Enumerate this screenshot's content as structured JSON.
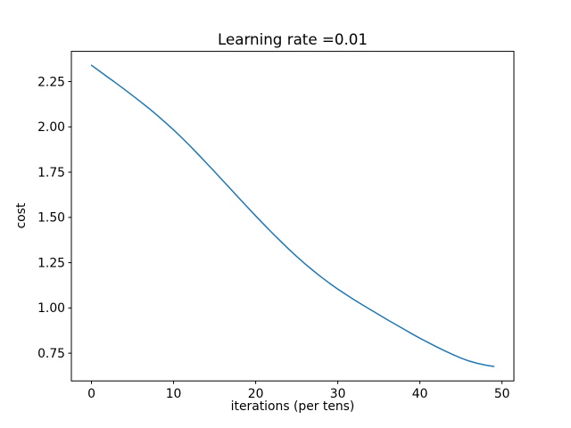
{
  "chart_data": {
    "type": "line",
    "title": "Learning rate =0.01",
    "xlabel": "iterations (per tens)",
    "ylabel": "cost",
    "x": [
      0,
      1,
      2,
      3,
      4,
      5,
      6,
      7,
      8,
      9,
      10,
      11,
      12,
      13,
      14,
      15,
      16,
      17,
      18,
      19,
      20,
      21,
      22,
      23,
      24,
      25,
      26,
      27,
      28,
      29,
      30,
      31,
      32,
      33,
      34,
      35,
      36,
      37,
      38,
      39,
      40,
      41,
      42,
      43,
      44,
      45,
      46,
      47,
      48,
      49
    ],
    "series": [
      {
        "name": "cost",
        "color": "#1f77b4",
        "values": [
          2.34,
          2.307,
          2.274,
          2.241,
          2.207,
          2.173,
          2.138,
          2.102,
          2.064,
          2.024,
          1.983,
          1.94,
          1.895,
          1.848,
          1.8,
          1.752,
          1.703,
          1.654,
          1.605,
          1.556,
          1.508,
          1.461,
          1.415,
          1.37,
          1.326,
          1.284,
          1.244,
          1.206,
          1.17,
          1.136,
          1.104,
          1.074,
          1.045,
          1.017,
          0.99,
          0.963,
          0.936,
          0.91,
          0.884,
          0.858,
          0.833,
          0.809,
          0.786,
          0.764,
          0.743,
          0.723,
          0.707,
          0.694,
          0.684,
          0.677
        ]
      }
    ],
    "xticks": [
      0,
      10,
      20,
      30,
      40,
      50
    ],
    "xtick_labels": [
      "0",
      "10",
      "20",
      "30",
      "40",
      "50"
    ],
    "yticks": [
      0.75,
      1.0,
      1.25,
      1.5,
      1.75,
      2.0,
      2.25
    ],
    "ytick_labels": [
      "0.75",
      "1.00",
      "1.25",
      "1.50",
      "1.75",
      "2.00",
      "2.25"
    ],
    "xlim": [
      -2.45,
      51.45
    ],
    "ylim": [
      0.597,
      2.417
    ],
    "grid": false,
    "legend": "none",
    "background": "#ffffff",
    "axis_color": "#000000",
    "text_color": "#000000"
  }
}
